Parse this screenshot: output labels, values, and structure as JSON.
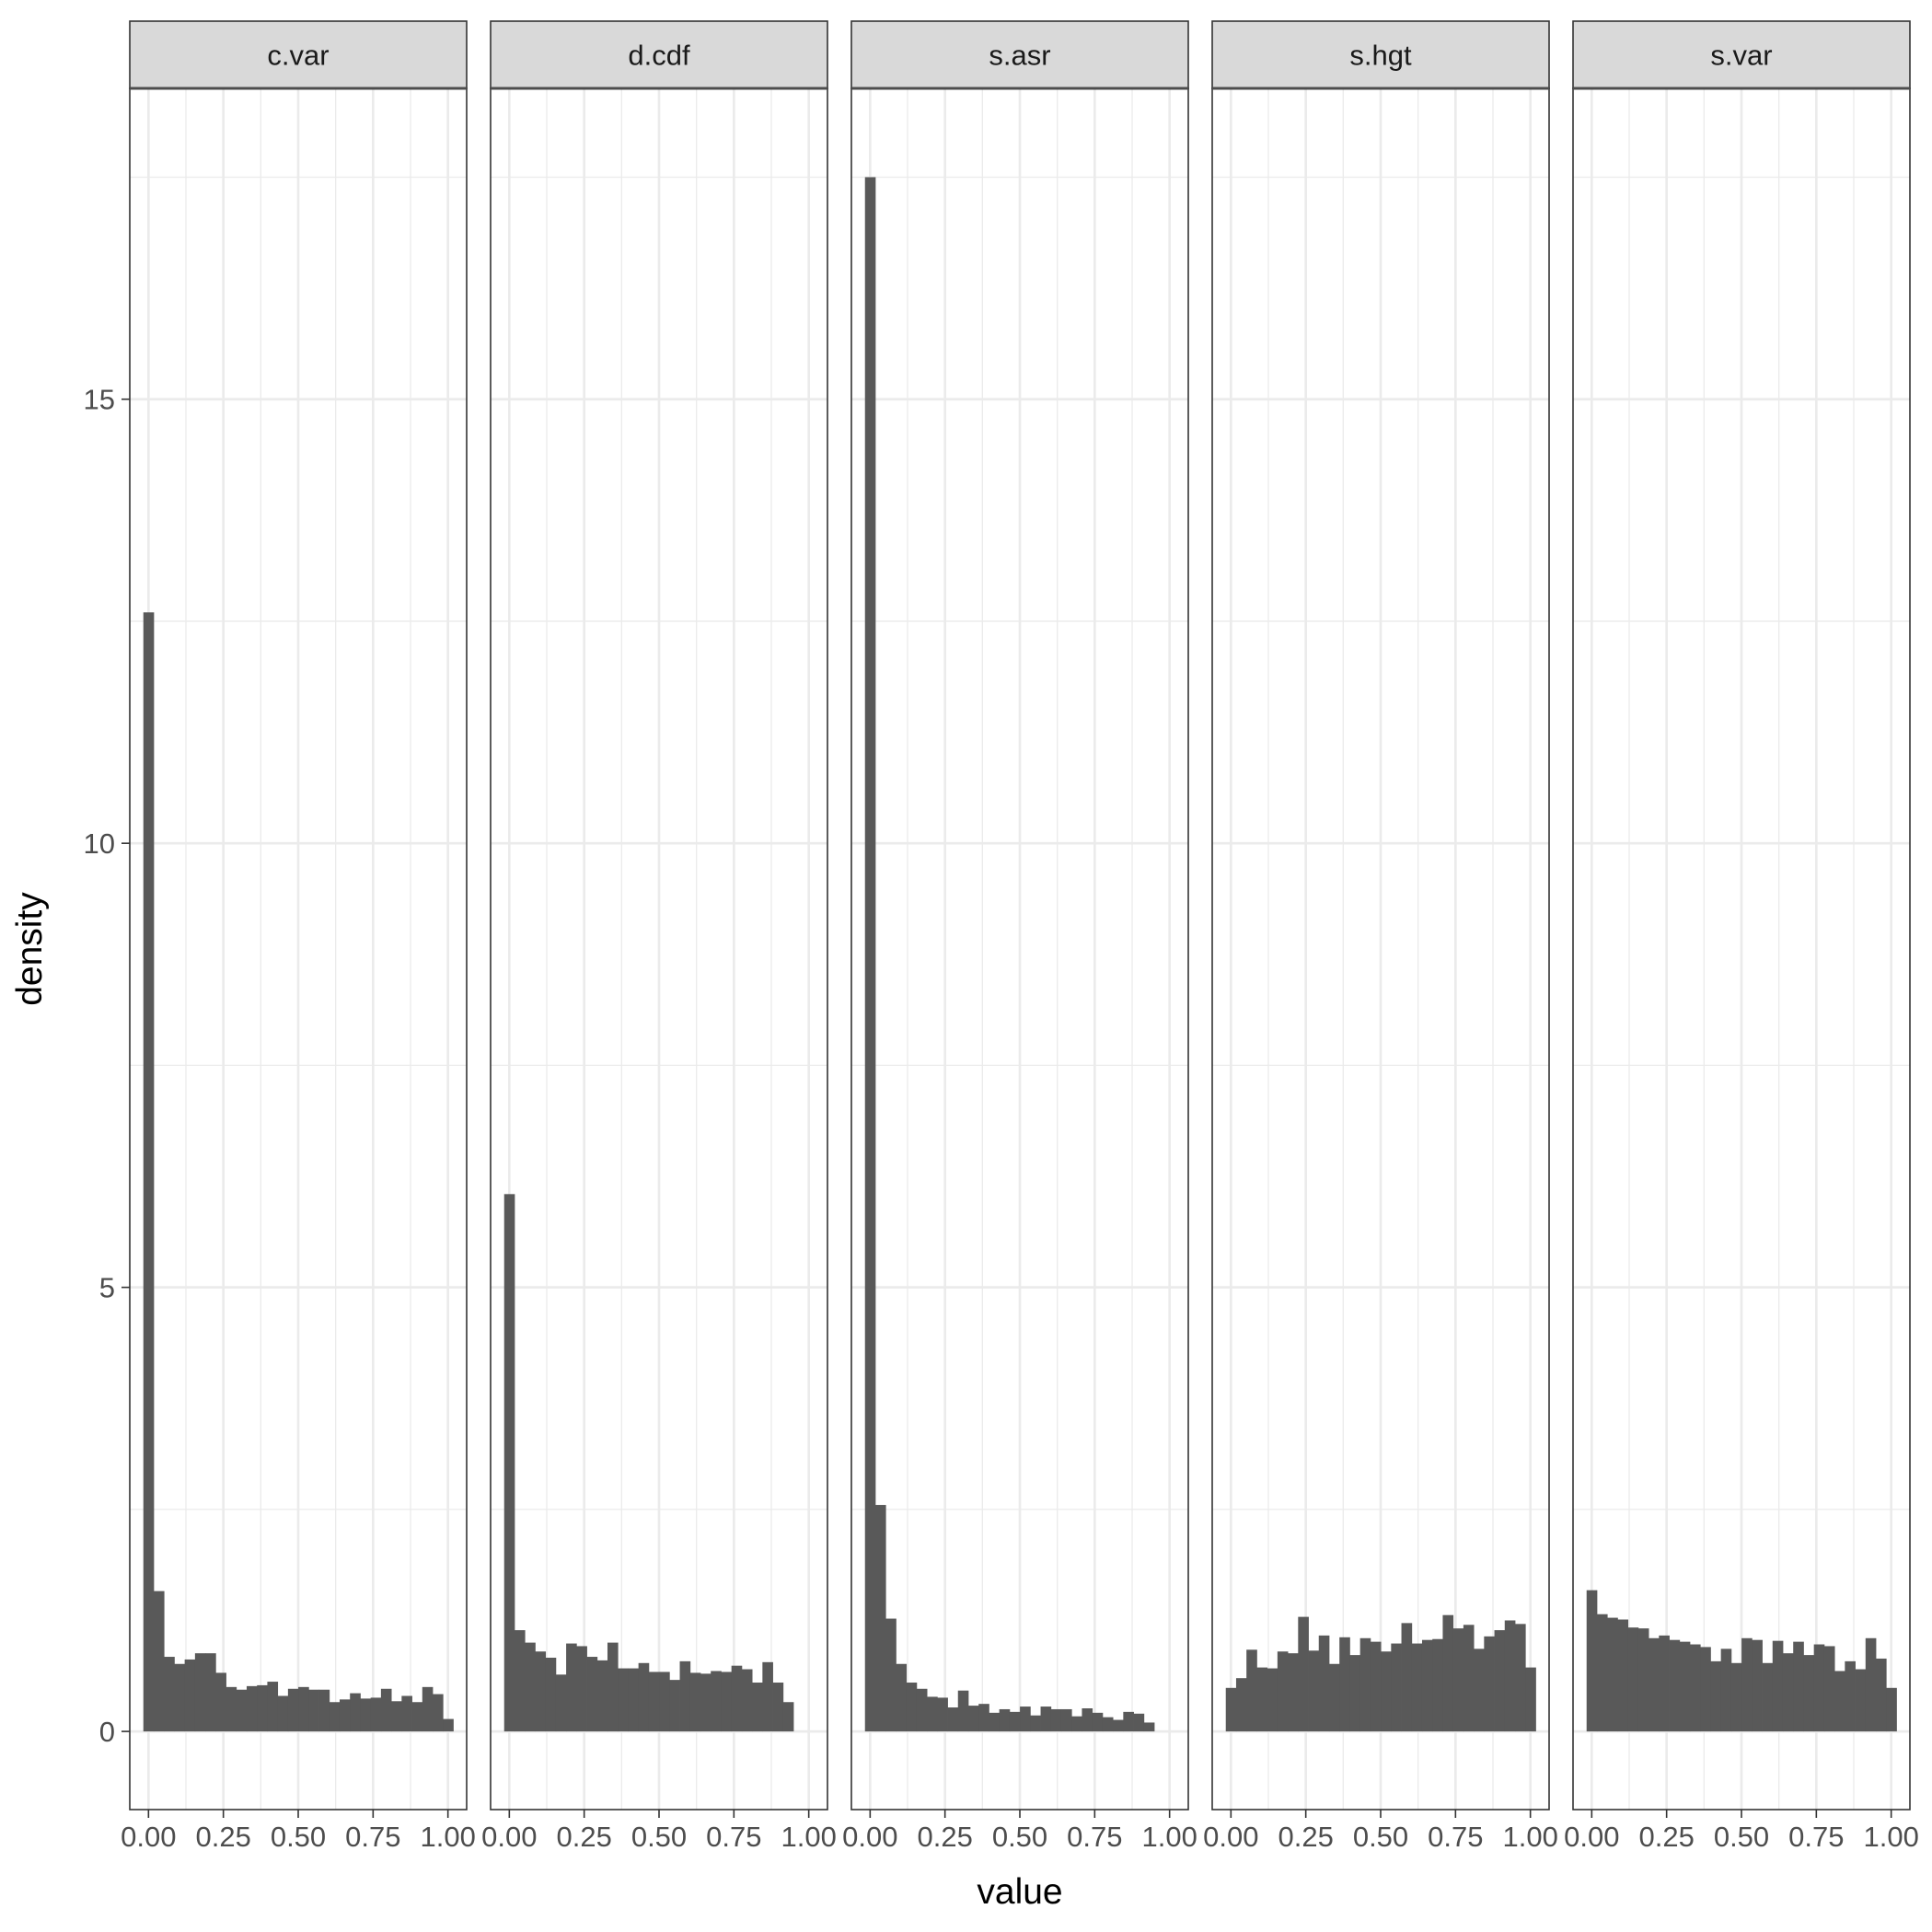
{
  "chart_data": {
    "type": "histogram",
    "xlabel": "value",
    "ylabel": "density",
    "xlim": [
      -0.0625,
      1.0625
    ],
    "ylim": [
      -0.88,
      18.5
    ],
    "x_ticks": [
      0,
      0.25,
      0.5,
      0.75,
      1
    ],
    "x_tick_labels": [
      "0.00",
      "0.25",
      "0.50",
      "0.75",
      "1.00"
    ],
    "y_ticks": [
      0,
      5,
      10,
      15
    ],
    "y_tick_labels": [
      "0",
      "5",
      "10",
      "15"
    ],
    "y_minor_ticks": [
      2.5,
      7.5,
      12.5,
      17.5
    ],
    "x_minor_ticks": [
      0.125,
      0.375,
      0.625,
      0.875
    ],
    "grid": true,
    "bin_width": 0.0345,
    "bins_start": -0.0172,
    "bar_color": "#595959",
    "panel_border_color": "#333333",
    "strip_fill": "#d9d9d9",
    "grid_color": "#ebebeb",
    "panels": [
      {
        "label": "c.var",
        "values": [
          12.6,
          1.58,
          0.84,
          0.76,
          0.81,
          0.88,
          0.88,
          0.66,
          0.5,
          0.47,
          0.51,
          0.52,
          0.56,
          0.4,
          0.48,
          0.5,
          0.47,
          0.47,
          0.33,
          0.36,
          0.43,
          0.37,
          0.38,
          0.48,
          0.34,
          0.4,
          0.33,
          0.5,
          0.42,
          0.14
        ]
      },
      {
        "label": "d.cdf",
        "values": [
          6.05,
          1.14,
          1.0,
          0.9,
          0.83,
          0.64,
          0.99,
          0.96,
          0.84,
          0.8,
          1.0,
          0.71,
          0.71,
          0.77,
          0.67,
          0.67,
          0.58,
          0.79,
          0.66,
          0.65,
          0.68,
          0.67,
          0.74,
          0.7,
          0.55,
          0.78,
          0.55,
          0.33
        ]
      },
      {
        "label": "s.asr",
        "values": [
          17.5,
          2.55,
          1.27,
          0.76,
          0.55,
          0.48,
          0.39,
          0.38,
          0.27,
          0.46,
          0.29,
          0.31,
          0.21,
          0.25,
          0.22,
          0.28,
          0.18,
          0.28,
          0.25,
          0.25,
          0.17,
          0.26,
          0.21,
          0.16,
          0.13,
          0.22,
          0.2,
          0.1
        ]
      },
      {
        "label": "s.hgt",
        "values": [
          0.49,
          0.6,
          0.92,
          0.72,
          0.71,
          0.9,
          0.88,
          1.29,
          0.91,
          1.08,
          0.76,
          1.06,
          0.86,
          1.05,
          1.01,
          0.9,
          0.99,
          1.22,
          0.99,
          1.03,
          1.04,
          1.31,
          1.16,
          1.2,
          0.93,
          1.07,
          1.14,
          1.25,
          1.21,
          0.72
        ]
      },
      {
        "label": "s.var",
        "values": [
          1.59,
          1.32,
          1.28,
          1.26,
          1.17,
          1.16,
          1.05,
          1.08,
          1.03,
          1.01,
          0.98,
          0.95,
          0.79,
          0.93,
          0.77,
          1.05,
          1.03,
          0.77,
          1.02,
          0.88,
          1.01,
          0.86,
          0.98,
          0.96,
          0.68,
          0.79,
          0.7,
          1.05,
          0.82,
          0.49
        ]
      }
    ]
  }
}
